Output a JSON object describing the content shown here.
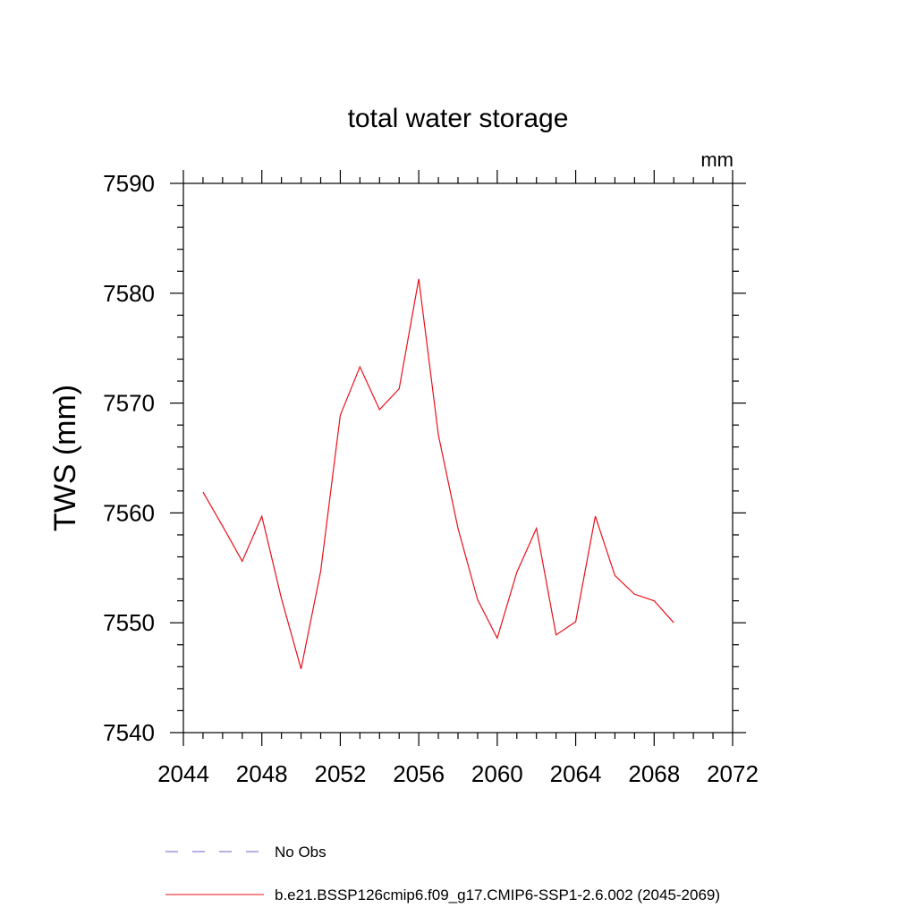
{
  "chart_data": {
    "type": "line",
    "title": "total water storage",
    "units_label": "mm",
    "xlabel": "",
    "ylabel": "TWS  (mm)",
    "xlim": [
      2044,
      2072
    ],
    "ylim": [
      7540,
      7590
    ],
    "x_ticks": [
      2044,
      2048,
      2052,
      2056,
      2060,
      2064,
      2068,
      2072
    ],
    "x_minor_step": 1,
    "y_ticks": [
      7540,
      7550,
      7560,
      7570,
      7580,
      7590
    ],
    "y_minor_step": 2,
    "grid": false,
    "legend_position": "bottom",
    "series": [
      {
        "name": "b.e21.BSSP126cmip6.f09_g17.CMIP6-SSP1-2.6.002 (2045-2069)",
        "color": "#e8101a",
        "style": "solid",
        "x": [
          2045,
          2046,
          2047,
          2048,
          2049,
          2050,
          2051,
          2052,
          2053,
          2054,
          2055,
          2056,
          2057,
          2058,
          2059,
          2060,
          2061,
          2062,
          2063,
          2064,
          2065,
          2066,
          2067,
          2068,
          2069
        ],
        "y": [
          7561.9,
          7558.8,
          7555.6,
          7559.7,
          7552.2,
          7545.8,
          7554.7,
          7568.9,
          7573.3,
          7569.4,
          7571.3,
          7581.3,
          7567.1,
          7558.6,
          7552.1,
          7548.6,
          7554.6,
          7558.6,
          7548.9,
          7550.1,
          7559.7,
          7554.3,
          7552.6,
          7552.0,
          7550.0
        ]
      }
    ],
    "legend": [
      {
        "label": "No Obs",
        "color": "#6b5fc7",
        "style": "dashed"
      },
      {
        "label": "b.e21.BSSP126cmip6.f09_g17.CMIP6-SSP1-2.6.002 (2045-2069)",
        "color": "#e8101a",
        "style": "solid"
      }
    ]
  }
}
